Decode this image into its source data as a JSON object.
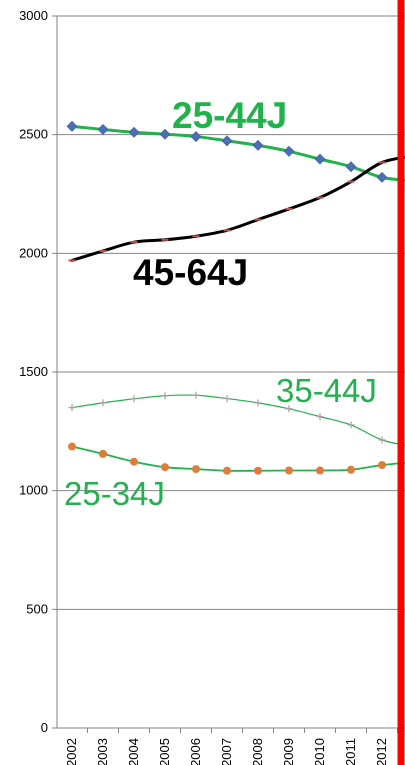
{
  "chart_data": {
    "type": "line",
    "title": "",
    "xlabel": "",
    "ylabel": "",
    "ylim": [
      0,
      3000
    ],
    "yticks": [
      0,
      500,
      1000,
      1500,
      2000,
      2500,
      3000
    ],
    "ytick_labels": [
      "0",
      "500",
      "1000",
      "1500",
      "2000",
      "2500",
      "3000"
    ],
    "x": [
      "2002",
      "2003",
      "2004",
      "2005",
      "2006",
      "2007",
      "2008",
      "2009",
      "2010",
      "2011",
      "2012",
      "2013"
    ],
    "x_tick_labels": [
      "2002",
      "2003",
      "2004",
      "2005",
      "2006",
      "2007",
      "2008",
      "2009",
      "2010",
      "2011",
      "2012",
      ""
    ],
    "grid": "horizontal",
    "series": [
      {
        "name": "25-44J",
        "line_color": "#22b14c",
        "marker": "diamond",
        "marker_color": "#4a6fb5",
        "label_color": "#22b14c",
        "values": [
          2535,
          2522,
          2510,
          2502,
          2492,
          2474,
          2455,
          2430,
          2397,
          2365,
          2320,
          2305
        ]
      },
      {
        "name": "45-64J",
        "line_color": "#000000",
        "marker": "dash",
        "marker_color": "#c0504d",
        "label_color": "#000000",
        "values": [
          1970,
          2010,
          2047,
          2057,
          2072,
          2097,
          2142,
          2187,
          2235,
          2302,
          2383,
          2410
        ]
      },
      {
        "name": "35-44J",
        "line_color": "#22b14c",
        "marker": "plus",
        "marker_color": "#a0a0a0",
        "label_color": "#22b14c",
        "values": [
          1350,
          1370,
          1387,
          1400,
          1402,
          1388,
          1370,
          1345,
          1312,
          1277,
          1214,
          1185
        ]
      },
      {
        "name": "25-34J",
        "line_color": "#22b14c",
        "marker": "circle",
        "marker_color": "#e07b39",
        "label_color": "#22b14c",
        "values": [
          1186,
          1155,
          1122,
          1099,
          1091,
          1084,
          1084,
          1085,
          1085,
          1088,
          1108,
          1120
        ]
      }
    ],
    "reference_line": {
      "color": "#ff0000"
    }
  }
}
